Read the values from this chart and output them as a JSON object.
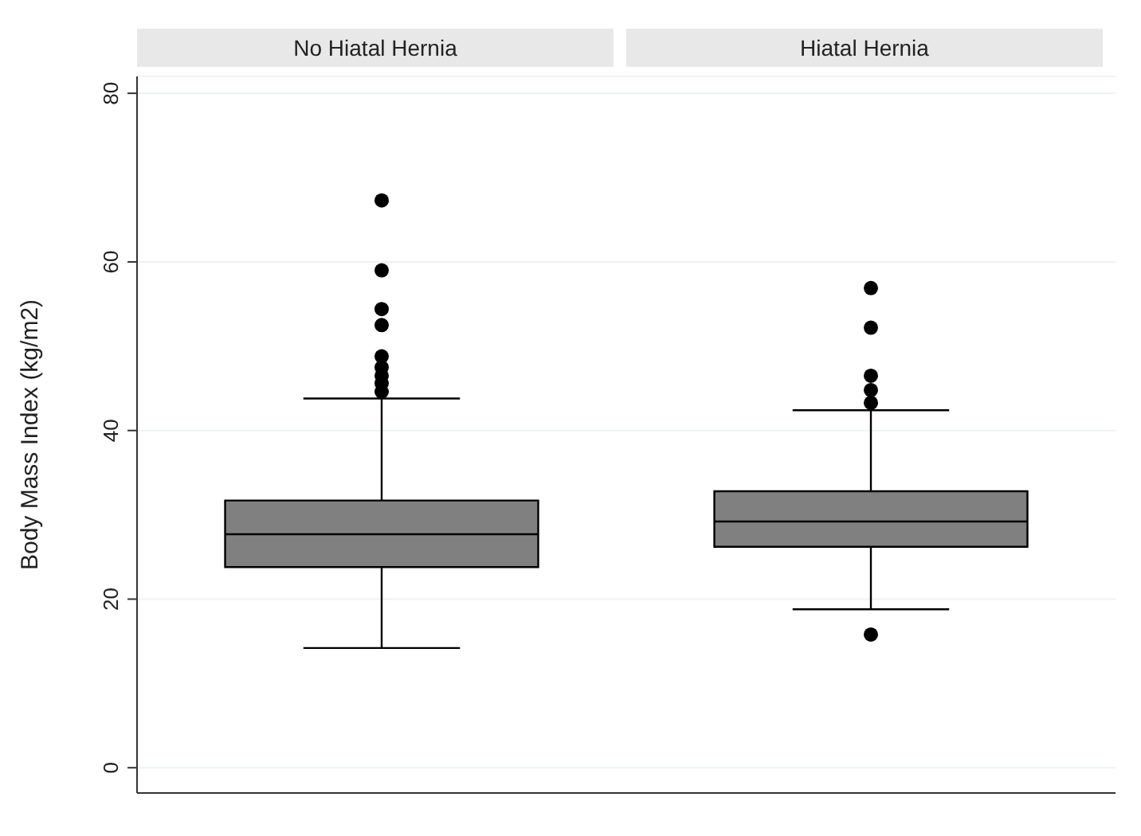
{
  "chart_data": {
    "type": "box",
    "ylabel": "Body Mass Index (kg/m2)",
    "categories": [
      "No Hiatal Hernia",
      "Hiatal Hernia"
    ],
    "color": "#808080",
    "ylim": [
      -3,
      82
    ],
    "yticks": [
      0,
      20,
      40,
      60,
      80
    ],
    "grid": "y",
    "boxes": [
      {
        "low": 14.2,
        "q1": 23.8,
        "median": 27.7,
        "q3": 31.7,
        "high": 43.8,
        "outliers": [
          67.3,
          59.0,
          54.4,
          52.5,
          48.8,
          47.5,
          46.5,
          45.6,
          44.6
        ]
      },
      {
        "low": 18.8,
        "q1": 26.2,
        "median": 29.2,
        "q3": 32.8,
        "high": 42.4,
        "outliers": [
          56.9,
          52.2,
          46.5,
          44.8,
          43.3,
          15.8
        ]
      }
    ]
  }
}
